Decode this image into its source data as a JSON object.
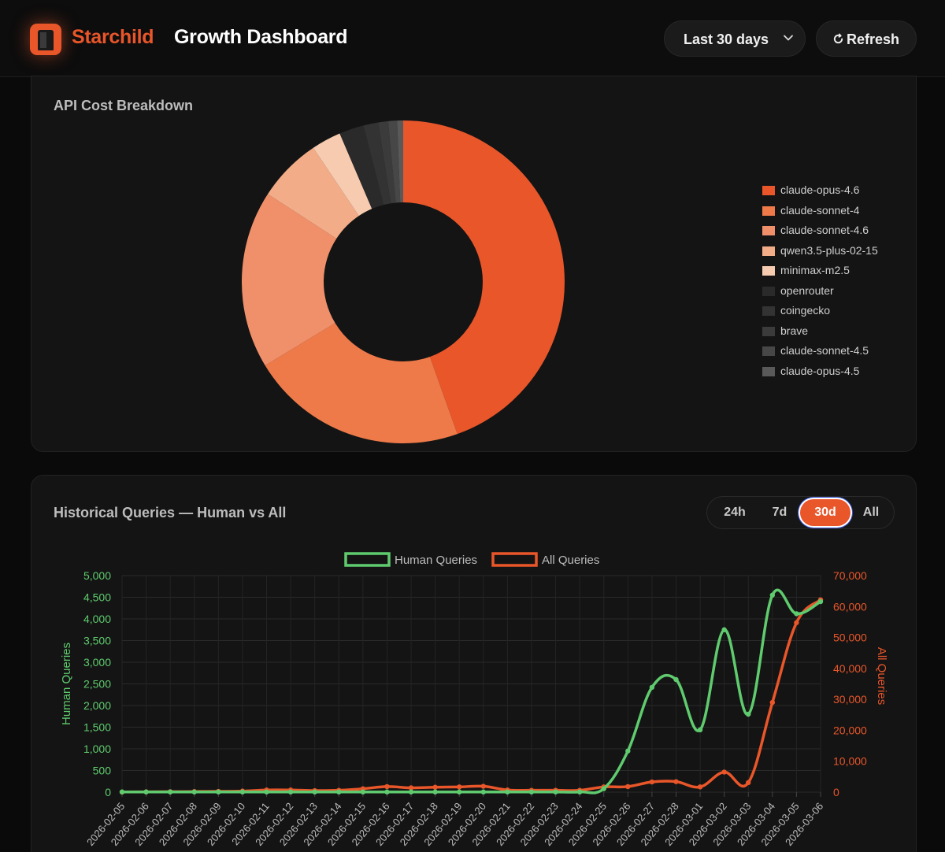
{
  "header": {
    "brand": "Starchild",
    "title": "Growth Dashboard",
    "range_label": "Last 30 days",
    "refresh_label": "Refresh",
    "accent": "#e8562a"
  },
  "cost_card": {
    "title": "API Cost Breakdown",
    "chart_data": {
      "type": "pie",
      "title": "API Cost Breakdown",
      "labels": [
        "claude-opus-4.6",
        "claude-sonnet-4",
        "claude-sonnet-4.6",
        "qwen3.5-plus-02-15",
        "minimax-m2.5",
        "openrouter",
        "coingecko",
        "brave",
        "claude-sonnet-4.5",
        "claude-opus-4.5"
      ],
      "values": [
        45.0,
        22.0,
        18.0,
        6.5,
        3.0,
        2.5,
        1.5,
        1.0,
        0.9,
        0.6
      ],
      "colors": [
        "#e8562a",
        "#ee7a4a",
        "#f0906a",
        "#f3ac88",
        "#f6cbb0",
        "#2a2a2a",
        "#333333",
        "#3b3b3b",
        "#474747",
        "#595959"
      ],
      "legend": "right"
    }
  },
  "queries_card": {
    "title": "Historical Queries — Human vs All",
    "periods": [
      "24h",
      "7d",
      "30d",
      "All"
    ],
    "active_period": "30d",
    "chart_data": {
      "type": "line",
      "title": "",
      "x": [
        "2026-02-05",
        "2026-02-06",
        "2026-02-07",
        "2026-02-08",
        "2026-02-09",
        "2026-02-10",
        "2026-02-11",
        "2026-02-12",
        "2026-02-13",
        "2026-02-14",
        "2026-02-15",
        "2026-02-16",
        "2026-02-17",
        "2026-02-18",
        "2026-02-19",
        "2026-02-20",
        "2026-02-21",
        "2026-02-22",
        "2026-02-23",
        "2026-02-24",
        "2026-02-25",
        "2026-02-26",
        "2026-02-27",
        "2026-02-28",
        "2026-03-01",
        "2026-03-02",
        "2026-03-03",
        "2026-03-04",
        "2026-03-05",
        "2026-03-06"
      ],
      "series": [
        {
          "name": "Human Queries",
          "axis": "left",
          "color": "#5fcb6e",
          "values": [
            5,
            5,
            5,
            5,
            5,
            5,
            5,
            5,
            5,
            5,
            5,
            5,
            5,
            5,
            5,
            5,
            5,
            5,
            5,
            5,
            80,
            950,
            2420,
            2600,
            1440,
            3750,
            1800,
            4550,
            4120,
            4400
          ]
        },
        {
          "name": "All Queries",
          "axis": "right",
          "color": "#e8562a",
          "values": [
            50,
            100,
            150,
            200,
            250,
            350,
            700,
            700,
            500,
            600,
            1100,
            1800,
            1400,
            1600,
            1700,
            1900,
            700,
            600,
            600,
            600,
            1700,
            1800,
            3300,
            3400,
            1700,
            6500,
            3100,
            29000,
            54800,
            62200
          ]
        }
      ],
      "ylabel_left": "Human Queries",
      "ylabel_right": "All Queries",
      "ylim_left": [
        0,
        5000
      ],
      "ylim_right": [
        0,
        70000
      ],
      "yticks_left": [
        "5,000",
        "4,500",
        "4,000",
        "3,500",
        "3,000",
        "2,500",
        "2,000",
        "1,500",
        "1,000",
        "500",
        "0"
      ],
      "yticks_right": [
        "70,000",
        "60,000",
        "50,000",
        "40,000",
        "30,000",
        "20,000",
        "10,000",
        "0"
      ],
      "grid": true,
      "legend": "top-center"
    }
  }
}
